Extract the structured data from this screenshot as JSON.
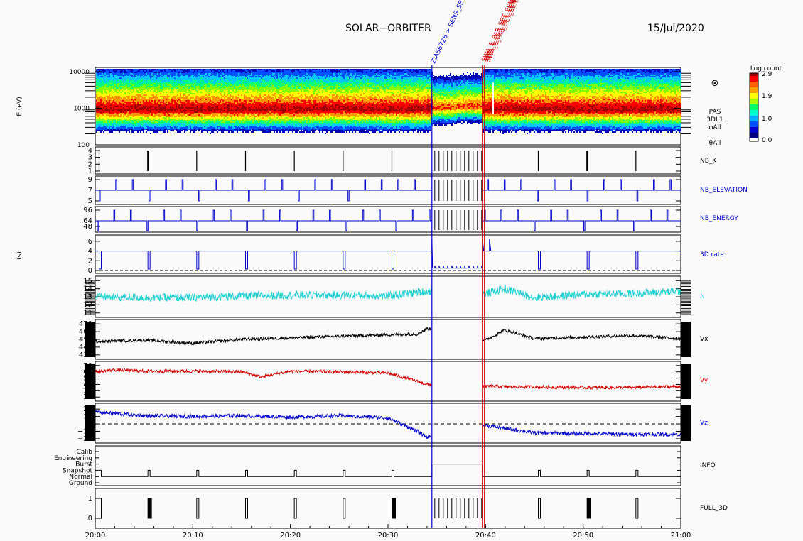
{
  "header": {
    "title": "SOLAR−ORBITER",
    "date": "15/Jul/2020"
  },
  "events": [
    {
      "label": "ZIA56726 > SENS_SET_BU",
      "color": "#0000c8"
    },
    {
      "label": "SWA_E_PAS_SET_SENSOR",
      "color": "#d00000"
    }
  ],
  "colorbar": {
    "title": "Log count",
    "ticks": [
      "2.9",
      "1.9",
      "1.0",
      "0.0"
    ],
    "colors": [
      "#ffffff",
      "#0000b4",
      "#0050ff",
      "#00c8ff",
      "#00ff80",
      "#80ff00",
      "#ffff00",
      "#ff9600",
      "#ff0000",
      "#a00000"
    ]
  },
  "spectrogram": {
    "ylabel": "E (eV)",
    "yticks": [
      "10000",
      "1000",
      "100"
    ],
    "side_labels": [
      "⊗",
      "PAS",
      "3DL1",
      "φAll",
      "θAll"
    ]
  },
  "units_label": "(s)",
  "xaxis": {
    "ticks": [
      "20:00",
      "20:10",
      "20:20",
      "20:30",
      "20:40",
      "20:50",
      "21:00"
    ]
  },
  "panels": [
    {
      "id": "nbk",
      "label": "NB_K",
      "label_color": "#000000",
      "yticks": [
        "4",
        "3",
        "2",
        "1"
      ]
    },
    {
      "id": "nbel",
      "label": "NB_ELEVATION",
      "label_color": "#0000c8",
      "yticks": [
        "9",
        "7",
        "5"
      ]
    },
    {
      "id": "nben",
      "label": "NB_ENERGY",
      "label_color": "#0000c8",
      "yticks": [
        "96",
        "64",
        "48"
      ]
    },
    {
      "id": "rate",
      "label": "3D rate",
      "label_color": "#0000c8",
      "yticks": [
        "6",
        "4",
        "2",
        "0"
      ]
    },
    {
      "id": "n",
      "label": "N",
      "label_color": "#20d0d0",
      "yticks": [
        "15",
        "14",
        "13",
        "12",
        "11"
      ]
    },
    {
      "id": "vx",
      "label": "Vx",
      "label_color": "#000000",
      "yticks": [
        "470",
        "460",
        "450",
        "440",
        "430"
      ]
    },
    {
      "id": "vy",
      "label": "Vy",
      "label_color": "#d00000",
      "yticks": [
        "70",
        "60",
        "50",
        "40",
        "30",
        "20"
      ]
    },
    {
      "id": "vz",
      "label": "Vz",
      "label_color": "#0000c8",
      "yticks": [
        "20",
        "10",
        "0",
        "−10",
        "−20"
      ]
    },
    {
      "id": "info",
      "label": "INFO",
      "label_color": "#000000",
      "yticks": [
        "Calib",
        "Engineering",
        "Burst",
        "Snapshot",
        "Normal",
        "Ground"
      ]
    },
    {
      "id": "full",
      "label": "FULL_3D",
      "label_color": "#000000",
      "yticks": [
        "1",
        "0"
      ]
    }
  ],
  "chart_data": {
    "type": "line",
    "title": "SOLAR−ORBITER",
    "date": "15/Jul/2020",
    "x_range": [
      "20:00",
      "21:00"
    ],
    "gap": {
      "start": "20:34:30",
      "end": "20:39:40"
    },
    "series": [
      {
        "name": "N",
        "color": "#20d0d0",
        "x": [
          "20:00",
          "20:05",
          "20:10",
          "20:15",
          "20:20",
          "20:25",
          "20:30",
          "20:34",
          "20:40",
          "20:42",
          "20:45",
          "20:50",
          "20:55",
          "21:00"
        ],
        "y": [
          13.0,
          12.9,
          12.9,
          13.1,
          13.2,
          13.2,
          13.1,
          13.7,
          13.4,
          14.0,
          12.9,
          13.3,
          13.4,
          13.7
        ]
      },
      {
        "name": "Vx",
        "color": "#000000",
        "x": [
          "20:00",
          "20:05",
          "20:10",
          "20:15",
          "20:20",
          "20:25",
          "20:30",
          "20:33",
          "20:34",
          "20:40",
          "20:42",
          "20:45",
          "20:50",
          "20:55",
          "21:00"
        ],
        "y": [
          447,
          449,
          445,
          450,
          452,
          454,
          456,
          457,
          464,
          449,
          462,
          451,
          453,
          455,
          451
        ]
      },
      {
        "name": "Vy",
        "color": "#d00000",
        "x": [
          "20:00",
          "20:02",
          "20:05",
          "20:10",
          "20:15",
          "20:17",
          "20:20",
          "20:25",
          "20:30",
          "20:33",
          "20:34",
          "20:40",
          "20:45",
          "20:50",
          "20:55",
          "21:00"
        ],
        "y": [
          60,
          63,
          61,
          61,
          60,
          52,
          61,
          60,
          58,
          45,
          40,
          37,
          36,
          35,
          35,
          37
        ]
      },
      {
        "name": "Vz",
        "color": "#0000c8",
        "x": [
          "20:00",
          "20:05",
          "20:10",
          "20:15",
          "20:20",
          "20:25",
          "20:30",
          "20:33",
          "20:34",
          "20:40",
          "20:45",
          "20:50",
          "20:55",
          "21:00"
        ],
        "y": [
          16,
          11,
          10,
          11,
          9,
          11,
          8,
          -10,
          -18,
          -2,
          -12,
          -13,
          -14,
          -14
        ]
      },
      {
        "name": "3D rate",
        "color": "#0000c8",
        "x": [
          "20:00",
          "20:34",
          "20:34:30",
          "20:39:40",
          "20:40",
          "21:00"
        ],
        "y": [
          4,
          4,
          6.5,
          0.5,
          6.5,
          4
        ]
      }
    ]
  }
}
